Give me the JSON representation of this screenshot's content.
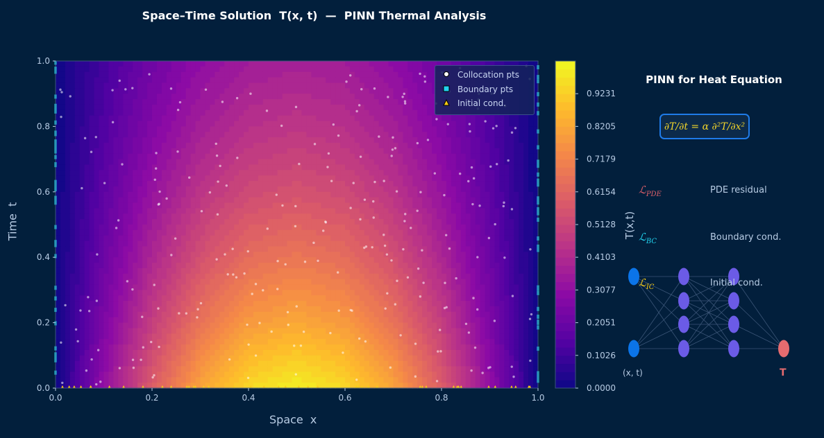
{
  "title": "Space–Time Solution  T(x, t)  —  PINN Thermal Analysis",
  "chart_data": {
    "type": "heatmap",
    "xlabel": "Space  x",
    "ylabel": "Time  t",
    "xlim": [
      0,
      1
    ],
    "ylim": [
      0,
      1
    ],
    "xticks": [
      "0.0",
      "0.2",
      "0.4",
      "0.6",
      "0.8",
      "1.0"
    ],
    "yticks": [
      "0.0",
      "0.2",
      "0.4",
      "0.6",
      "0.8",
      "1.0"
    ],
    "colormap": "plasma",
    "x": [
      0,
      0.1,
      0.2,
      0.3,
      0.4,
      0.5,
      0.6,
      0.7,
      0.8,
      0.9,
      1.0
    ],
    "t": [
      0,
      0.2,
      0.4,
      0.6,
      0.8,
      1.0
    ],
    "z": [
      [
        0,
        0.309,
        0.588,
        0.809,
        0.951,
        1.0,
        0.951,
        0.809,
        0.588,
        0.309,
        0
      ],
      [
        0,
        0.254,
        0.483,
        0.664,
        0.781,
        0.821,
        0.781,
        0.664,
        0.483,
        0.254,
        0
      ],
      [
        0,
        0.208,
        0.396,
        0.545,
        0.641,
        0.674,
        0.641,
        0.545,
        0.396,
        0.208,
        0
      ],
      [
        0,
        0.171,
        0.325,
        0.447,
        0.526,
        0.553,
        0.526,
        0.447,
        0.325,
        0.171,
        0
      ],
      [
        0,
        0.14,
        0.267,
        0.367,
        0.432,
        0.454,
        0.432,
        0.367,
        0.267,
        0.14,
        0
      ],
      [
        0,
        0.115,
        0.219,
        0.302,
        0.355,
        0.373,
        0.355,
        0.302,
        0.219,
        0.115,
        0
      ]
    ],
    "colorbar": {
      "label": "T(x,t)",
      "range": [
        0,
        1.0256
      ],
      "ticks": [
        "0.0000",
        "0.1026",
        "0.2051",
        "0.3077",
        "0.4103",
        "0.5128",
        "0.6154",
        "0.7179",
        "0.8205",
        "0.9231"
      ]
    },
    "legend": {
      "placement": "top-right",
      "entries": [
        {
          "label": "Collocation pts",
          "marker": "circle",
          "color": "#ffffff"
        },
        {
          "label": "Boundary pts",
          "marker": "square",
          "color": "#22d3ee"
        },
        {
          "label": "Initial cond.",
          "marker": "triangle",
          "color": "#facc15"
        }
      ]
    },
    "grid": false
  },
  "panel": {
    "title": "PINN for Heat Equation",
    "equation": "∂T/∂t = α ∂²T/∂x²",
    "losses": [
      {
        "symbol": "ℒ",
        "sub": "PDE",
        "desc": "PDE residual",
        "color": "#e0606a"
      },
      {
        "symbol": "ℒ",
        "sub": "BC",
        "desc": "Boundary cond.",
        "color": "#22d3ee"
      },
      {
        "symbol": "ℒ",
        "sub": "IC",
        "desc": "Initial cond.",
        "color": "#facc15"
      }
    ],
    "network": {
      "input_label": "(x, t)",
      "output_label": "T",
      "input_color": "#0b74e8",
      "hidden_color": "#6b5be6",
      "output_color": "#e56b6f"
    }
  }
}
